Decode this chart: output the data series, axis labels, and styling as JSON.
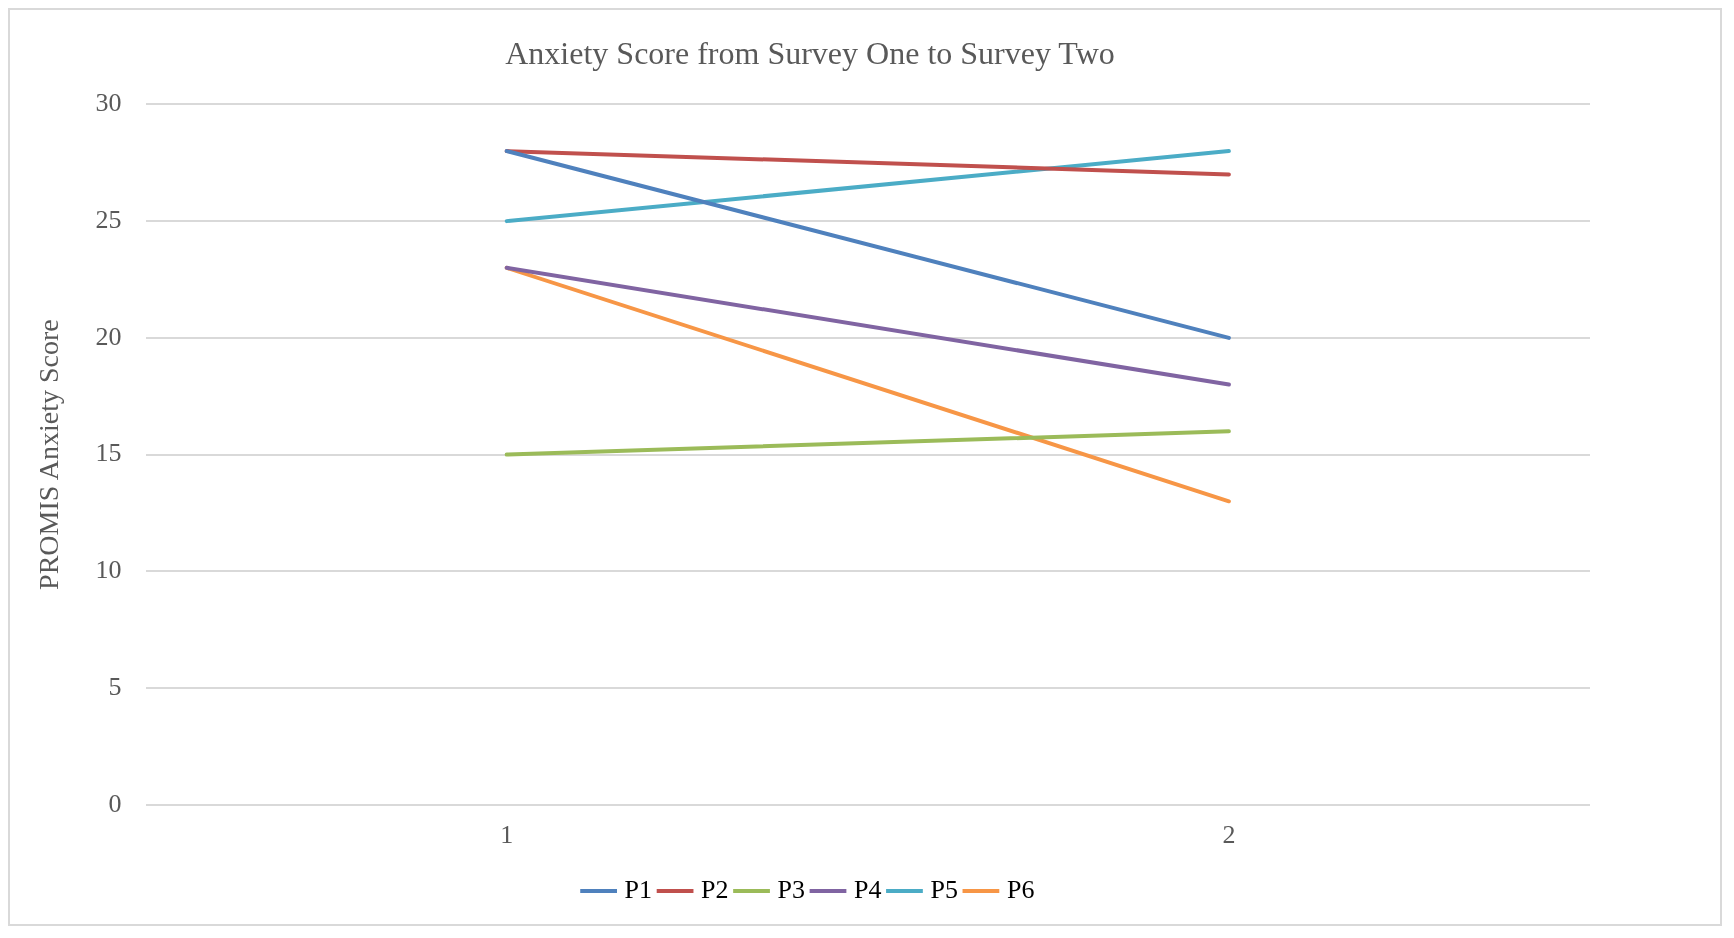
{
  "chart_data": {
    "type": "line",
    "title": "Anxiety Score from Survey One to Survey Two",
    "ylabel": "PROMIS Anxiety Score",
    "categories": [
      "1",
      "2"
    ],
    "series": [
      {
        "name": "P1",
        "color": "#4f81bd",
        "values": [
          28,
          20
        ]
      },
      {
        "name": "P2",
        "color": "#c0504d",
        "values": [
          28,
          27
        ]
      },
      {
        "name": "P3",
        "color": "#9bbb59",
        "values": [
          15,
          16
        ]
      },
      {
        "name": "P4",
        "color": "#8064a2",
        "values": [
          23,
          18
        ]
      },
      {
        "name": "P5",
        "color": "#4bacc6",
        "values": [
          25,
          28
        ]
      },
      {
        "name": "P6",
        "color": "#f79646",
        "values": [
          23,
          13
        ]
      }
    ],
    "ylim": [
      0,
      30
    ],
    "yticks": [
      0,
      5,
      10,
      15,
      20,
      25,
      30
    ],
    "grid": "y",
    "legend": "bottom",
    "marker": "none",
    "line_style": "solid"
  }
}
